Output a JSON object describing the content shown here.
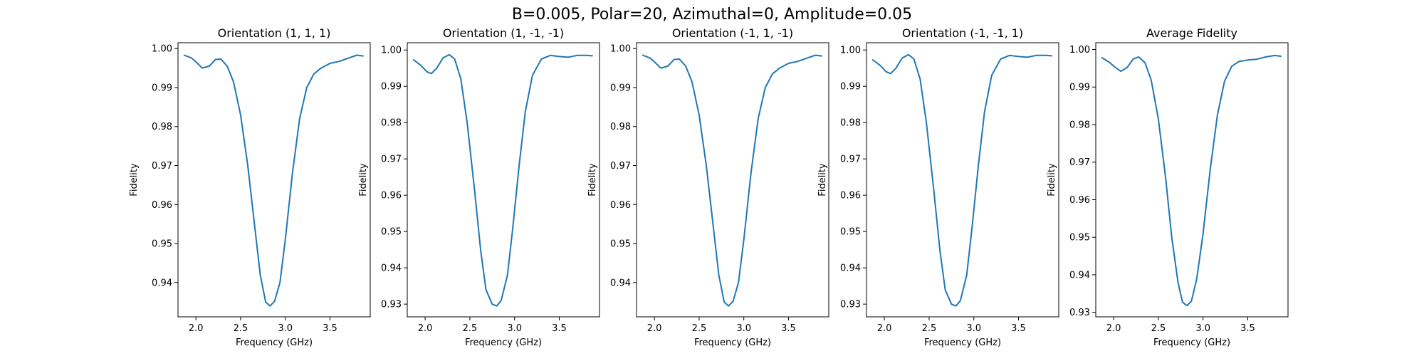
{
  "figure": {
    "suptitle": "B=0.005, Polar=20, Azimuthal=0, Amplitude=0.05"
  },
  "chart_data": [
    {
      "type": "line",
      "title": "Orientation (1, 1, 1)",
      "xlabel": "Frequency (GHz)",
      "ylabel": "Fidelity",
      "xlim": [
        1.8,
        3.95
      ],
      "ylim": [
        0.9312,
        1.0015
      ],
      "xticks": [
        "2.0",
        "2.5",
        "3.0",
        "3.5"
      ],
      "yticks": [
        "0.94",
        "0.95",
        "0.96",
        "0.97",
        "0.98",
        "0.99",
        "1.00"
      ],
      "grid": false,
      "color": "#1f77b4",
      "x": [
        1.87,
        1.95,
        2.0,
        2.07,
        2.15,
        2.22,
        2.28,
        2.35,
        2.42,
        2.5,
        2.58,
        2.66,
        2.72,
        2.78,
        2.83,
        2.88,
        2.94,
        3.0,
        3.08,
        3.16,
        3.24,
        3.32,
        3.4,
        3.5,
        3.6,
        3.7,
        3.8,
        3.87
      ],
      "y": [
        0.9983,
        0.9976,
        0.9966,
        0.995,
        0.9955,
        0.9972,
        0.9973,
        0.9955,
        0.9915,
        0.983,
        0.97,
        0.954,
        0.942,
        0.935,
        0.934,
        0.9352,
        0.94,
        0.951,
        0.968,
        0.982,
        0.99,
        0.9935,
        0.995,
        0.9962,
        0.9967,
        0.9975,
        0.9983,
        0.9981
      ]
    },
    {
      "type": "line",
      "title": "Orientation (1, -1, -1)",
      "xlabel": "Frequency (GHz)",
      "ylabel": "Fidelity",
      "xlim": [
        1.8,
        3.95
      ],
      "ylim": [
        0.9265,
        1.002
      ],
      "xticks": [
        "2.0",
        "2.5",
        "3.0",
        "3.5"
      ],
      "yticks": [
        "0.93",
        "0.94",
        "0.95",
        "0.96",
        "0.97",
        "0.98",
        "0.99",
        "1.00"
      ],
      "grid": false,
      "color": "#1f77b4",
      "x": [
        1.87,
        1.95,
        2.02,
        2.07,
        2.13,
        2.2,
        2.27,
        2.33,
        2.4,
        2.47,
        2.55,
        2.62,
        2.68,
        2.75,
        2.8,
        2.85,
        2.92,
        2.98,
        3.05,
        3.12,
        3.2,
        3.3,
        3.4,
        3.5,
        3.6,
        3.7,
        3.8,
        3.87
      ],
      "y": [
        0.9973,
        0.9958,
        0.994,
        0.9935,
        0.995,
        0.9978,
        0.9987,
        0.9975,
        0.992,
        0.98,
        0.962,
        0.945,
        0.934,
        0.93,
        0.9295,
        0.931,
        0.938,
        0.951,
        0.968,
        0.983,
        0.993,
        0.9975,
        0.9985,
        0.9982,
        0.998,
        0.9985,
        0.9985,
        0.9984
      ]
    },
    {
      "type": "line",
      "title": "Orientation (-1, 1, -1)",
      "xlabel": "Frequency (GHz)",
      "ylabel": "Fidelity",
      "xlim": [
        1.8,
        3.95
      ],
      "ylim": [
        0.9312,
        1.0015
      ],
      "xticks": [
        "2.0",
        "2.5",
        "3.0",
        "3.5"
      ],
      "yticks": [
        "0.94",
        "0.95",
        "0.96",
        "0.97",
        "0.98",
        "0.99",
        "1.00"
      ],
      "grid": false,
      "color": "#1f77b4",
      "x": [
        1.87,
        1.95,
        2.0,
        2.07,
        2.15,
        2.22,
        2.28,
        2.35,
        2.42,
        2.5,
        2.58,
        2.66,
        2.72,
        2.78,
        2.83,
        2.88,
        2.94,
        3.0,
        3.08,
        3.16,
        3.24,
        3.32,
        3.4,
        3.5,
        3.6,
        3.7,
        3.8,
        3.87
      ],
      "y": [
        0.9983,
        0.9976,
        0.9966,
        0.995,
        0.9955,
        0.9972,
        0.9973,
        0.9955,
        0.9915,
        0.983,
        0.97,
        0.954,
        0.942,
        0.935,
        0.934,
        0.9352,
        0.94,
        0.951,
        0.968,
        0.982,
        0.99,
        0.9935,
        0.995,
        0.9962,
        0.9967,
        0.9975,
        0.9983,
        0.9981
      ]
    },
    {
      "type": "line",
      "title": "Orientation (-1, -1, 1)",
      "xlabel": "Frequency (GHz)",
      "ylabel": "Fidelity",
      "xlim": [
        1.8,
        3.95
      ],
      "ylim": [
        0.9265,
        1.002
      ],
      "xticks": [
        "2.0",
        "2.5",
        "3.0",
        "3.5"
      ],
      "yticks": [
        "0.93",
        "0.94",
        "0.95",
        "0.96",
        "0.97",
        "0.98",
        "0.99",
        "1.00"
      ],
      "grid": false,
      "color": "#1f77b4",
      "x": [
        1.87,
        1.95,
        2.02,
        2.07,
        2.13,
        2.2,
        2.27,
        2.33,
        2.4,
        2.47,
        2.55,
        2.62,
        2.68,
        2.75,
        2.8,
        2.85,
        2.92,
        2.98,
        3.05,
        3.12,
        3.2,
        3.3,
        3.4,
        3.5,
        3.6,
        3.7,
        3.8,
        3.87
      ],
      "y": [
        0.9973,
        0.9958,
        0.994,
        0.9935,
        0.995,
        0.9978,
        0.9987,
        0.9975,
        0.992,
        0.98,
        0.962,
        0.945,
        0.934,
        0.93,
        0.9295,
        0.931,
        0.938,
        0.951,
        0.968,
        0.983,
        0.993,
        0.9975,
        0.9985,
        0.9982,
        0.998,
        0.9985,
        0.9985,
        0.9984
      ]
    },
    {
      "type": "line",
      "title": "Average Fidelity",
      "xlabel": "Frequency (GHz)",
      "ylabel": "Fidelity",
      "xlim": [
        1.8,
        3.95
      ],
      "ylim": [
        0.9288,
        1.0018
      ],
      "xticks": [
        "2.0",
        "2.5",
        "3.0",
        "3.5"
      ],
      "yticks": [
        "0.93",
        "0.94",
        "0.95",
        "0.96",
        "0.97",
        "0.98",
        "0.99",
        "1.00"
      ],
      "grid": false,
      "color": "#1f77b4",
      "x": [
        1.87,
        1.95,
        2.02,
        2.08,
        2.15,
        2.22,
        2.28,
        2.35,
        2.42,
        2.5,
        2.58,
        2.65,
        2.72,
        2.77,
        2.82,
        2.87,
        2.93,
        3.0,
        3.08,
        3.16,
        3.24,
        3.32,
        3.4,
        3.5,
        3.6,
        3.7,
        3.8,
        3.87
      ],
      "y": [
        0.9978,
        0.9966,
        0.9952,
        0.9942,
        0.9952,
        0.9975,
        0.998,
        0.9965,
        0.9918,
        0.9815,
        0.966,
        0.95,
        0.938,
        0.9327,
        0.9318,
        0.933,
        0.939,
        0.951,
        0.968,
        0.9825,
        0.9915,
        0.9955,
        0.9968,
        0.9972,
        0.9974,
        0.998,
        0.9984,
        0.9982
      ]
    }
  ]
}
